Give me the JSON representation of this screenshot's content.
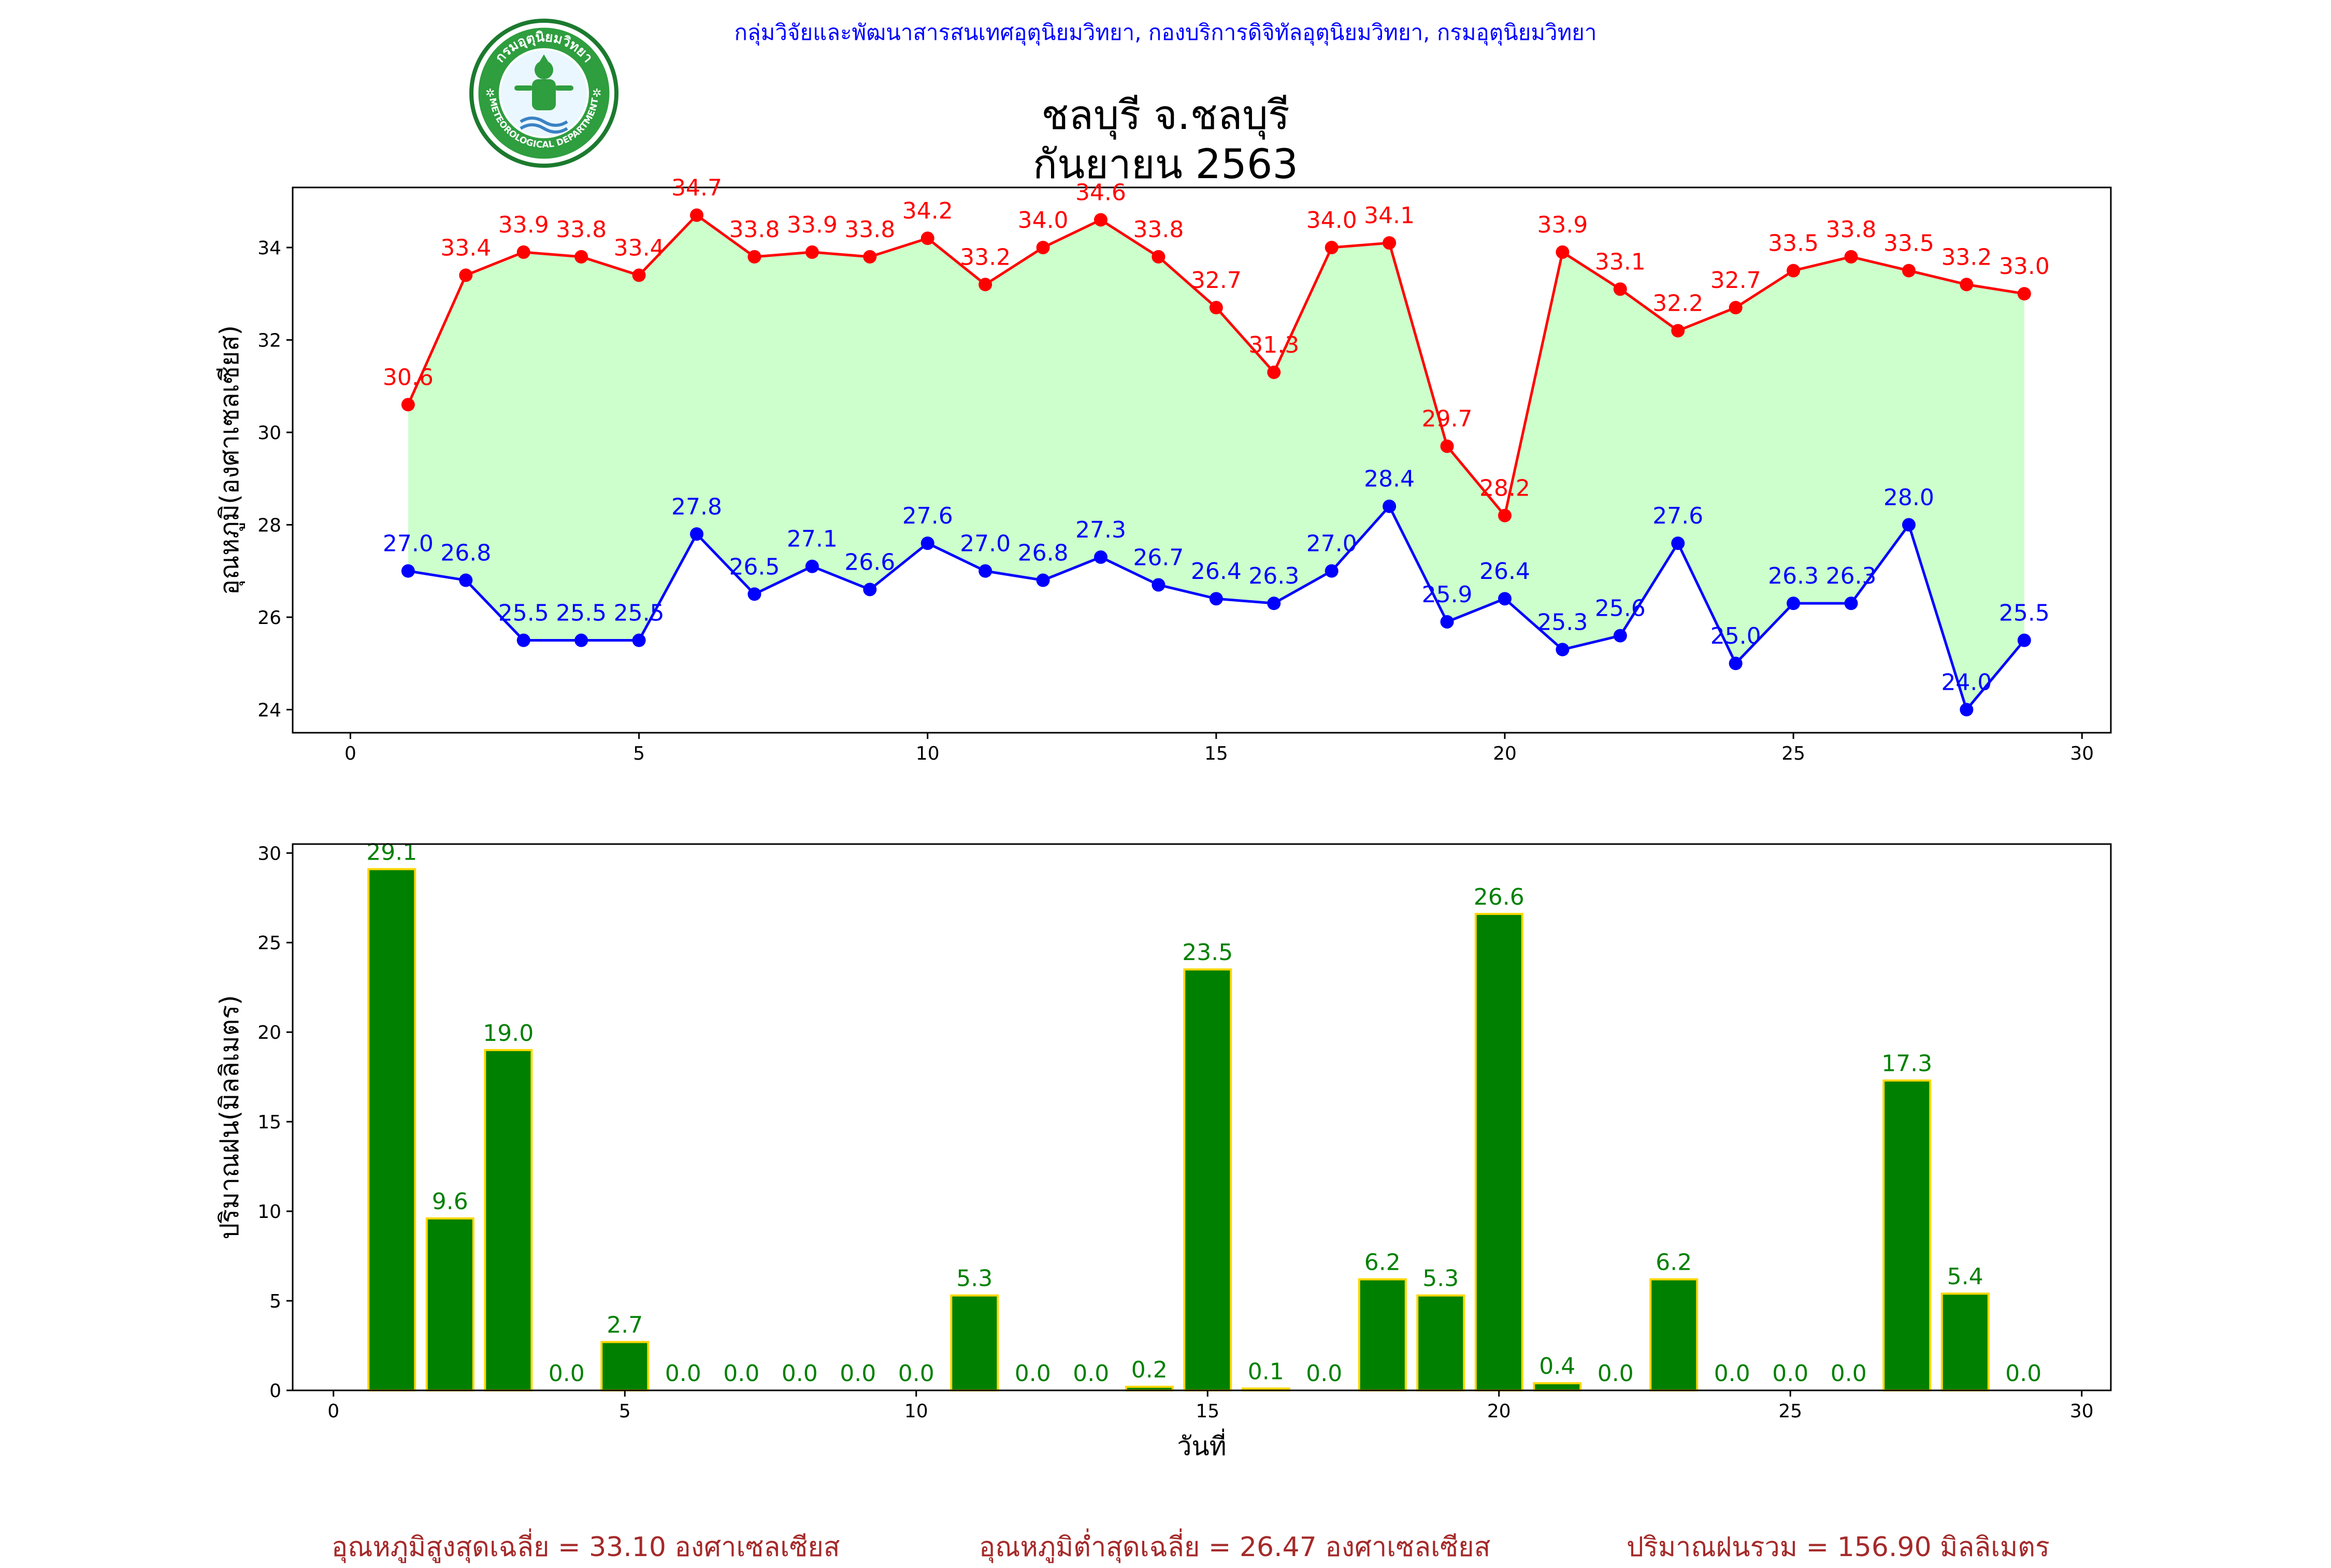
{
  "header": {
    "credit": "กลุ่มวิจัยและพัฒนาสารสนเทศอุตุนิยมวิทยา, กองบริการดิจิทัลอุตุนิยมวิทยา, กรมอุตุนิยมวิทยา",
    "station": "ชลบุรี จ.ชลบุรี",
    "period": "กันยายน 2563",
    "logo_text_top": "กรมอุตุนิยมวิทยา",
    "logo_text_bottom": "METEOROLOGICAL DEPARTMENT"
  },
  "footer": {
    "avg_max": "อุณหภูมิสูงสุดเฉลี่ย = 33.10 องศาเซลเซียส",
    "avg_min": "อุณหภูมิต่ำสุดเฉลี่ย = 26.47 องศาเซลเซียส",
    "total_rain": "ปริมาณฝนรวม = 156.90 มิลลิเมตร"
  },
  "chart_data": [
    {
      "type": "line",
      "ylabel": "อุณหภูมิ(องศาเซลเซียส)",
      "xlabel": "",
      "xlim": [
        -1,
        30.5
      ],
      "ylim": [
        23.5,
        35.3
      ],
      "xticks": [
        0,
        5,
        10,
        15,
        20,
        25,
        30
      ],
      "yticks": [
        24,
        26,
        28,
        30,
        32,
        34
      ],
      "x": [
        1,
        2,
        3,
        4,
        5,
        6,
        7,
        8,
        9,
        10,
        11,
        12,
        13,
        14,
        15,
        16,
        17,
        18,
        19,
        20,
        21,
        22,
        23,
        24,
        25,
        26,
        27,
        28,
        29
      ],
      "fill_between": "#ccffcc",
      "series": [
        {
          "role": "max",
          "color": "#ff0000",
          "values": [
            30.6,
            33.4,
            33.9,
            33.8,
            33.4,
            34.7,
            33.8,
            33.9,
            33.8,
            34.2,
            33.2,
            34.0,
            34.6,
            33.8,
            32.7,
            31.3,
            34.0,
            34.1,
            29.7,
            28.2,
            33.9,
            33.1,
            32.2,
            32.7,
            33.5,
            33.8,
            33.5,
            33.2,
            33.0
          ]
        },
        {
          "role": "min",
          "color": "#0000ff",
          "values": [
            27.0,
            26.8,
            25.5,
            25.5,
            25.5,
            27.8,
            26.5,
            27.1,
            26.6,
            27.6,
            27.0,
            26.8,
            27.3,
            26.7,
            26.4,
            26.3,
            27.0,
            28.4,
            25.9,
            26.4,
            25.3,
            25.6,
            27.6,
            25.0,
            26.3,
            26.3,
            28.0,
            24.0,
            25.5
          ]
        }
      ]
    },
    {
      "type": "bar",
      "ylabel": "ปริมาณฝน(มิลลิเมตร)",
      "xlabel": "วันที่",
      "xlim": [
        -0.7,
        30.5
      ],
      "ylim": [
        0,
        30.5
      ],
      "xticks": [
        0,
        5,
        10,
        15,
        20,
        25,
        30
      ],
      "yticks": [
        0,
        5,
        10,
        15,
        20,
        25,
        30
      ],
      "bar_color": "#008000",
      "edge_color": "#ffd700",
      "label_color": "#008000",
      "x": [
        1,
        2,
        3,
        4,
        5,
        6,
        7,
        8,
        9,
        10,
        11,
        12,
        13,
        14,
        15,
        16,
        17,
        18,
        19,
        20,
        21,
        22,
        23,
        24,
        25,
        26,
        27,
        28,
        29
      ],
      "values": [
        29.1,
        9.6,
        19.0,
        0.0,
        2.7,
        0.0,
        0.0,
        0.0,
        0.0,
        0.0,
        5.3,
        0.0,
        0.0,
        0.2,
        23.5,
        0.1,
        0.0,
        6.2,
        5.3,
        26.6,
        0.4,
        0.0,
        6.2,
        0.0,
        0.0,
        0.0,
        17.3,
        5.4,
        0.0
      ]
    }
  ]
}
